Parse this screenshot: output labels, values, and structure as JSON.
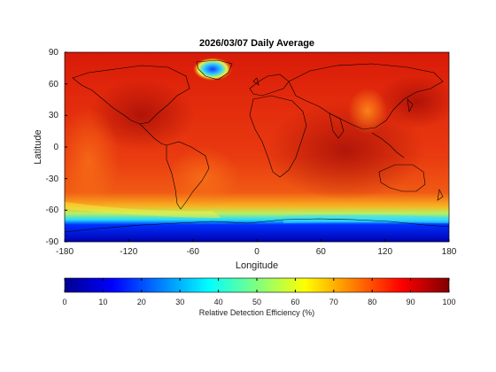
{
  "title": "2026/03/07 Daily Average",
  "axes": {
    "xlabel": "Longitude",
    "ylabel": "Latitude",
    "xlim": [
      -180,
      180
    ],
    "ylim": [
      -90,
      90
    ],
    "xticks": [
      "-180",
      "-120",
      "-60",
      "0",
      "60",
      "120",
      "180"
    ],
    "yticks": [
      "90",
      "60",
      "30",
      "0",
      "-30",
      "-60",
      "-90"
    ]
  },
  "colorbar": {
    "label": "Relative Detection Efficiency (%)",
    "ticks": [
      "0",
      "10",
      "20",
      "30",
      "40",
      "50",
      "60",
      "70",
      "80",
      "90",
      "100"
    ],
    "range": [
      0,
      100
    ],
    "colormap": "jet"
  },
  "chart_data": {
    "type": "heatmap",
    "title": "2026/03/07 Daily Average",
    "xlabel": "Longitude",
    "ylabel": "Latitude",
    "xlim": [
      -180,
      180
    ],
    "ylim": [
      -90,
      90
    ],
    "value_range": [
      0,
      100
    ],
    "value_label": "Relative Detection Efficiency (%)"
  }
}
